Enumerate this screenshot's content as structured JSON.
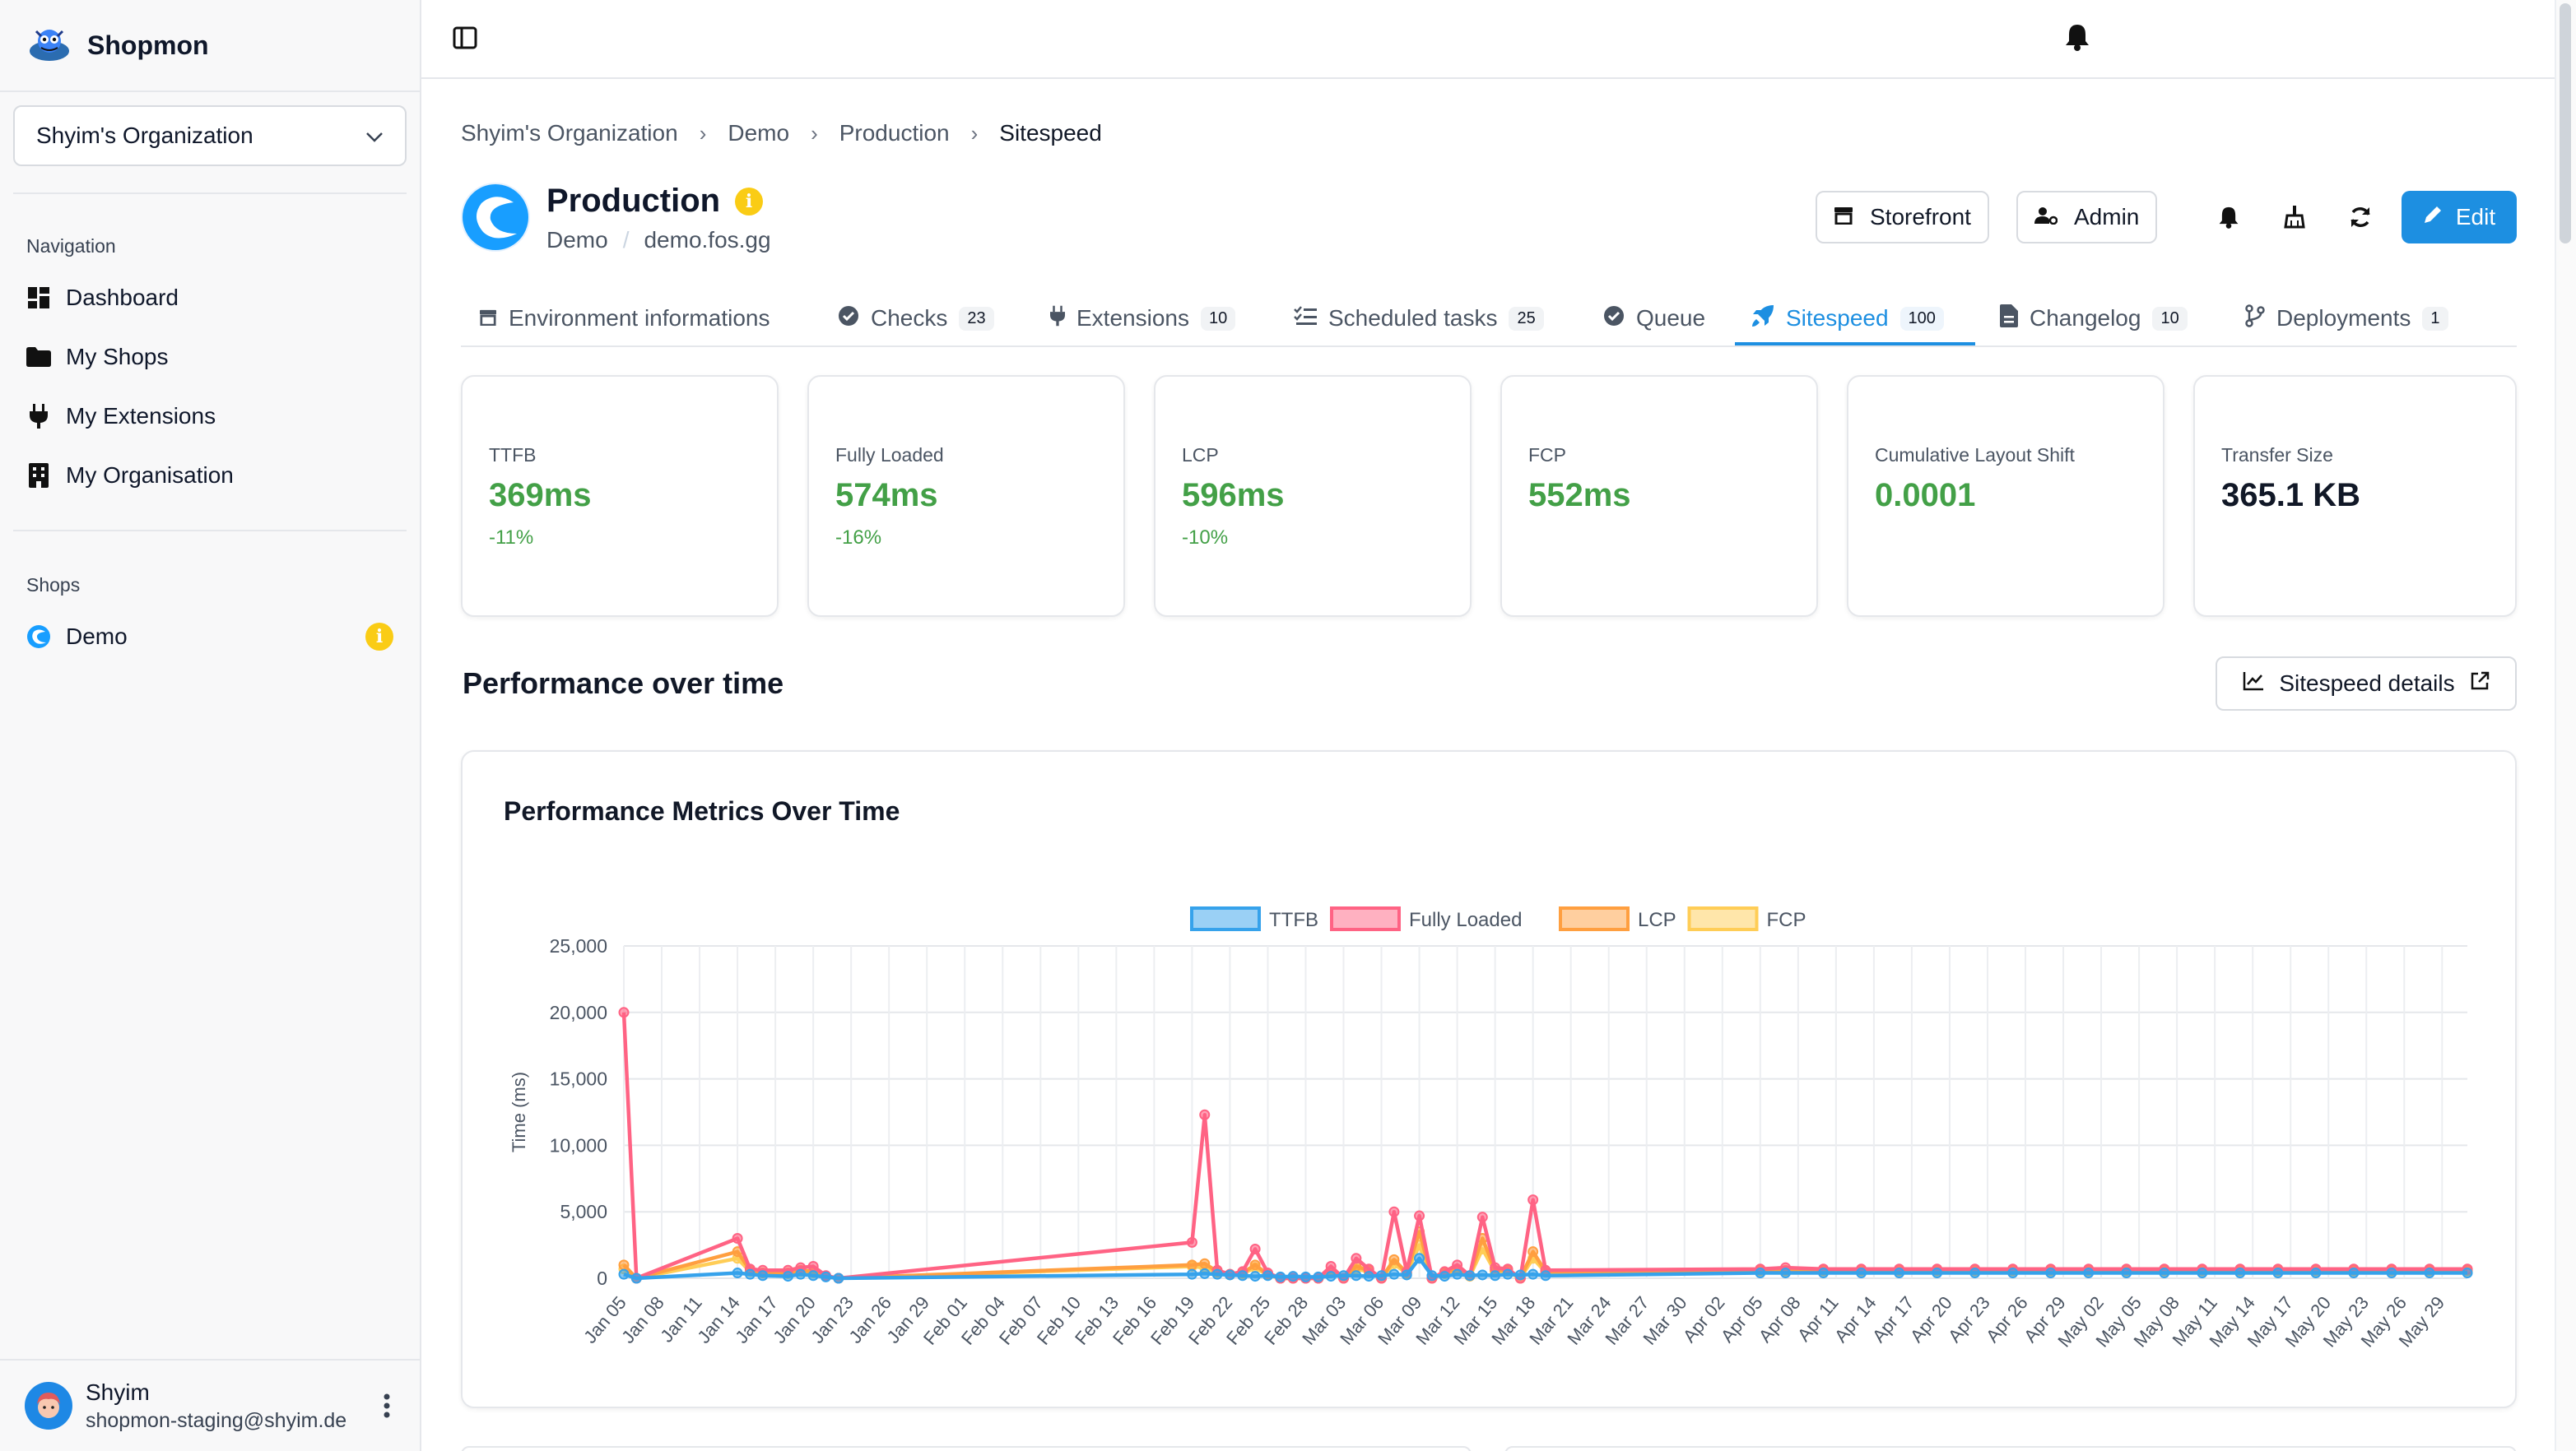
{
  "sidebar": {
    "brand": "Shopmon",
    "org_selector": "Shyim's Organization",
    "nav_heading": "Navigation",
    "nav": [
      {
        "label": "Dashboard",
        "icon": "dashboard-icon"
      },
      {
        "label": "My Shops",
        "icon": "folder-icon"
      },
      {
        "label": "My Extensions",
        "icon": "plug-icon"
      },
      {
        "label": "My Organisation",
        "icon": "building-icon"
      }
    ],
    "shops_heading": "Shops",
    "shops": [
      {
        "label": "Demo",
        "badge": "i"
      }
    ],
    "user": {
      "name": "Shyim",
      "email": "shopmon-staging@shyim.de"
    }
  },
  "breadcrumb": [
    "Shyim's Organization",
    "Demo",
    "Production",
    "Sitespeed"
  ],
  "environment": {
    "title": "Production",
    "title_badge": "i",
    "shop": "Demo",
    "domain": "demo.fos.gg",
    "storefront_label": "Storefront",
    "admin_label": "Admin",
    "edit_label": "Edit"
  },
  "tabs": [
    {
      "label": "Environment informations",
      "count": ""
    },
    {
      "label": "Checks",
      "count": "23"
    },
    {
      "label": "Extensions",
      "count": "10"
    },
    {
      "label": "Scheduled tasks",
      "count": "25"
    },
    {
      "label": "Queue",
      "count": ""
    },
    {
      "label": "Sitespeed",
      "count": "100",
      "active": true
    },
    {
      "label": "Changelog",
      "count": "10"
    },
    {
      "label": "Deployments",
      "count": "1"
    }
  ],
  "metrics": [
    {
      "label": "TTFB",
      "value": "369ms",
      "change": "-11%"
    },
    {
      "label": "Fully Loaded",
      "value": "574ms",
      "change": "-16%"
    },
    {
      "label": "LCP",
      "value": "596ms",
      "change": "-10%"
    },
    {
      "label": "FCP",
      "value": "552ms",
      "change": ""
    },
    {
      "label": "Cumulative Layout Shift",
      "value": "0.0001",
      "change": ""
    },
    {
      "label": "Transfer Size",
      "value": "365.1 KB",
      "change": ""
    }
  ],
  "section": {
    "title": "Performance over time",
    "details_label": "Sitespeed details"
  },
  "colors": {
    "accent": "#1d8fe1",
    "good": "#43a047",
    "ttfb": "#36a2eb",
    "fully_loaded": "#ff6384",
    "lcp": "#ff9f40",
    "fcp": "#ffcd56"
  },
  "chart_data": {
    "type": "line",
    "title": "Performance Metrics Over Time",
    "ylabel": "Time (ms)",
    "xlabel": "",
    "ylim": [
      0,
      25000
    ],
    "yticks": [
      "0",
      "5,000",
      "10,000",
      "15,000",
      "20,000",
      "25,000"
    ],
    "grid": true,
    "legend": "top",
    "xticks": [
      "Jan 05",
      "Jan 08",
      "Jan 11",
      "Jan 14",
      "Jan 17",
      "Jan 20",
      "Jan 23",
      "Jan 26",
      "Jan 29",
      "Feb 01",
      "Feb 04",
      "Feb 07",
      "Feb 10",
      "Feb 13",
      "Feb 16",
      "Feb 19",
      "Feb 22",
      "Feb 25",
      "Feb 28",
      "Mar 03",
      "Mar 06",
      "Mar 09",
      "Mar 12",
      "Mar 15",
      "Mar 18",
      "Mar 21",
      "Mar 24",
      "Mar 27",
      "Mar 30",
      "Apr 02",
      "Apr 05",
      "Apr 08",
      "Apr 11",
      "Apr 14",
      "Apr 17",
      "Apr 20",
      "Apr 23",
      "Apr 26",
      "Apr 29",
      "May 02",
      "May 05",
      "May 08",
      "May 11",
      "May 14",
      "May 17",
      "May 20",
      "May 23",
      "May 26",
      "May 29"
    ],
    "x": [
      "Jan 05",
      "Jan 06",
      "Jan 14",
      "Jan 15",
      "Jan 16",
      "Jan 18",
      "Jan 19",
      "Jan 20",
      "Jan 21",
      "Jan 22",
      "Feb 19",
      "Feb 20",
      "Feb 21",
      "Feb 22",
      "Feb 23",
      "Feb 24",
      "Feb 25",
      "Feb 26",
      "Feb 27",
      "Feb 28",
      "Mar 01",
      "Mar 02",
      "Mar 03",
      "Mar 04",
      "Mar 05",
      "Mar 06",
      "Mar 07",
      "Mar 08",
      "Mar 09",
      "Mar 10",
      "Mar 11",
      "Mar 12",
      "Mar 13",
      "Mar 14",
      "Mar 15",
      "Mar 16",
      "Mar 17",
      "Mar 18",
      "Mar 19",
      "Apr 05",
      "Apr 07",
      "Apr 10",
      "Apr 13",
      "Apr 16",
      "Apr 19",
      "Apr 22",
      "Apr 25",
      "Apr 28",
      "May 01",
      "May 04",
      "May 07",
      "May 10",
      "May 13",
      "May 16",
      "May 19",
      "May 22",
      "May 25",
      "May 28",
      "May 31"
    ],
    "series": [
      {
        "name": "TTFB",
        "color": "#36a2eb",
        "values": [
          300,
          0,
          400,
          300,
          200,
          150,
          300,
          200,
          100,
          0,
          300,
          350,
          300,
          250,
          200,
          150,
          200,
          100,
          150,
          100,
          100,
          150,
          200,
          200,
          150,
          200,
          300,
          250,
          1500,
          200,
          150,
          300,
          200,
          250,
          200,
          300,
          250,
          300,
          200,
          400,
          400,
          400,
          400,
          400,
          400,
          400,
          400,
          400,
          400,
          400,
          400,
          400,
          400,
          400,
          400,
          400,
          400,
          400,
          400
        ]
      },
      {
        "name": "Fully Loaded",
        "color": "#ff6384",
        "values": [
          20000,
          0,
          3000,
          700,
          600,
          600,
          800,
          900,
          200,
          0,
          2700,
          12300,
          600,
          300,
          500,
          2200,
          400,
          0,
          0,
          0,
          0,
          900,
          0,
          1500,
          700,
          0,
          5000,
          500,
          4700,
          0,
          500,
          1000,
          200,
          4600,
          800,
          700,
          0,
          5900,
          600,
          700,
          800,
          700,
          700,
          700,
          700,
          700,
          700,
          700,
          700,
          700,
          700,
          700,
          700,
          700,
          700,
          700,
          700,
          700,
          700
        ]
      },
      {
        "name": "LCP",
        "color": "#ff9f40",
        "values": [
          1000,
          0,
          2000,
          600,
          400,
          400,
          600,
          500,
          150,
          0,
          1000,
          1100,
          500,
          300,
          400,
          1000,
          300,
          0,
          0,
          0,
          0,
          500,
          0,
          900,
          600,
          0,
          1400,
          400,
          3500,
          0,
          400,
          700,
          200,
          3000,
          600,
          600,
          0,
          2000,
          500,
          600,
          600,
          600,
          600,
          600,
          600,
          600,
          600,
          600,
          600,
          600,
          600,
          600,
          600,
          600,
          600,
          600,
          600,
          600,
          600
        ]
      },
      {
        "name": "FCP",
        "color": "#ffcd56",
        "values": [
          700,
          0,
          1500,
          500,
          400,
          350,
          500,
          400,
          120,
          0,
          900,
          800,
          450,
          250,
          350,
          800,
          250,
          0,
          0,
          0,
          0,
          400,
          0,
          700,
          500,
          0,
          1100,
          350,
          2500,
          0,
          350,
          600,
          150,
          2200,
          500,
          500,
          0,
          1500,
          450,
          550,
          550,
          550,
          550,
          550,
          550,
          550,
          550,
          550,
          550,
          550,
          550,
          550,
          550,
          550,
          550,
          550,
          550,
          550,
          550
        ]
      }
    ]
  }
}
